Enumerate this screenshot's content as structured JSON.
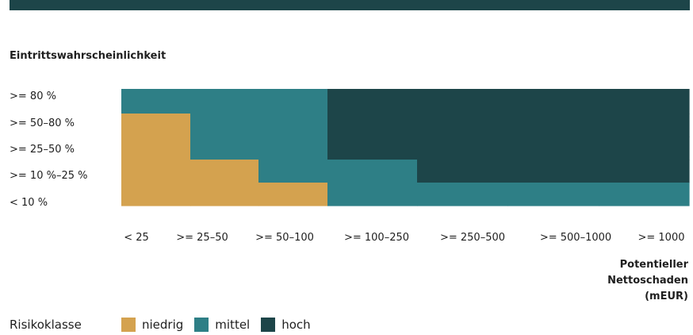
{
  "chart_data": {
    "type": "heatmap",
    "title": "",
    "ylabel": "Eintrittswahrscheinlichkeit",
    "xlabel": "Potentieller Nettoschaden (mEUR)",
    "x_categories": [
      "< 25",
      ">= 25–50",
      ">= 50–100",
      ">= 100–250",
      ">= 250–500",
      ">= 500–1000",
      ">= 1000"
    ],
    "y_categories": [
      ">= 80 %",
      ">= 50–80 %",
      ">= 25–50 %",
      ">= 10 %–25 %",
      "< 10 %"
    ],
    "classes": [
      {
        "key": "niedrig",
        "label": "niedrig",
        "color": "#d4a24f"
      },
      {
        "key": "mittel",
        "label": "mittel",
        "color": "#2e7f86"
      },
      {
        "key": "hoch",
        "label": "hoch",
        "color": "#1d4549"
      }
    ],
    "matrix": [
      [
        "mittel",
        "mittel",
        "mittel",
        "hoch",
        "hoch",
        "hoch",
        "hoch"
      ],
      [
        "niedrig",
        "mittel",
        "mittel",
        "hoch",
        "hoch",
        "hoch",
        "hoch"
      ],
      [
        "niedrig",
        "mittel",
        "mittel",
        "hoch",
        "hoch",
        "hoch",
        "hoch"
      ],
      [
        "niedrig",
        "niedrig",
        "mittel",
        "mittel",
        "hoch",
        "hoch",
        "hoch"
      ],
      [
        "niedrig",
        "niedrig",
        "niedrig",
        "mittel",
        "mittel",
        "mittel",
        "mittel"
      ]
    ]
  },
  "legend": {
    "title": "Risikoklasse",
    "items": [
      {
        "label": "niedrig",
        "color": "#d4a24f"
      },
      {
        "label": "mittel",
        "color": "#2e7f86"
      },
      {
        "label": "hoch",
        "color": "#1d4549"
      }
    ]
  }
}
